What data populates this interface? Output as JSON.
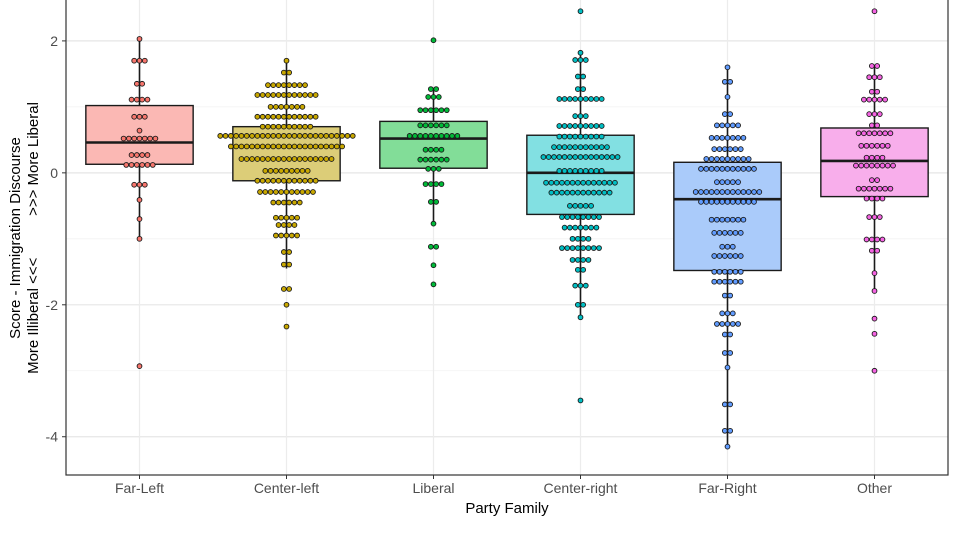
{
  "chart_data": {
    "type": "boxplot with dotplot overlay",
    "xlabel": "Party Family",
    "ylabel_lines": [
      "Score - Immigration Discourse",
      "More Illiberal <<<          >>> More Liberal"
    ],
    "ylim": [
      -4.58,
      2.62
    ],
    "yticks": [
      2,
      0,
      -2,
      -4
    ],
    "grid": true,
    "categories": [
      "Far-Left",
      "Center-left",
      "Liberal",
      "Center-right",
      "Far-Right",
      "Other"
    ],
    "colors": {
      "Far-Left": {
        "fill": "#fbb8b4",
        "dot": "#f8766d"
      },
      "Center-left": {
        "fill": "#dccd78",
        "dot": "#c9a800"
      },
      "Liberal": {
        "fill": "#82dd98",
        "dot": "#00ba38"
      },
      "Center-right": {
        "fill": "#82e0e2",
        "dot": "#00bfc4"
      },
      "Far-Right": {
        "fill": "#aacbfa",
        "dot": "#619cff"
      },
      "Other": {
        "fill": "#f8aeeb",
        "dot": "#f564e3"
      }
    },
    "boxes": [
      {
        "category": "Far-Left",
        "whisker_low": -1.0,
        "q1": 0.13,
        "median": 0.46,
        "q3": 1.02,
        "whisker_high": 2.03
      },
      {
        "category": "Center-left",
        "whisker_low": -1.45,
        "q1": -0.12,
        "median": 0.4,
        "q3": 0.7,
        "whisker_high": 1.7
      },
      {
        "category": "Liberal",
        "whisker_low": -0.77,
        "q1": 0.07,
        "median": 0.52,
        "q3": 0.78,
        "whisker_high": 1.27
      },
      {
        "category": "Center-right",
        "whisker_low": -2.19,
        "q1": -0.63,
        "median": 0.0,
        "q3": 0.57,
        "whisker_high": 1.82
      },
      {
        "category": "Far-Right",
        "whisker_low": -4.15,
        "q1": -1.48,
        "median": -0.4,
        "q3": 0.16,
        "whisker_high": 1.6
      },
      {
        "category": "Other",
        "whisker_low": -1.79,
        "q1": -0.36,
        "median": 0.18,
        "q3": 0.68,
        "whisker_high": 1.62
      }
    ],
    "dot_bins": {
      "Far-Left": [
        [
          2.03,
          1
        ],
        [
          1.7,
          3
        ],
        [
          1.35,
          2
        ],
        [
          1.11,
          4
        ],
        [
          0.85,
          3
        ],
        [
          0.64,
          1
        ],
        [
          0.52,
          7
        ],
        [
          0.27,
          4
        ],
        [
          0.12,
          6
        ],
        [
          -0.18,
          3
        ],
        [
          -0.41,
          1
        ],
        [
          -0.7,
          1
        ],
        [
          -1.0,
          1
        ],
        [
          -2.93,
          1
        ]
      ],
      "Center-left": [
        [
          1.7,
          1
        ],
        [
          1.52,
          2
        ],
        [
          1.33,
          8
        ],
        [
          1.18,
          12
        ],
        [
          1.0,
          7
        ],
        [
          0.85,
          12
        ],
        [
          0.7,
          10
        ],
        [
          0.56,
          26
        ],
        [
          0.4,
          22
        ],
        [
          0.21,
          18
        ],
        [
          0.03,
          9
        ],
        [
          -0.12,
          12
        ],
        [
          -0.29,
          11
        ],
        [
          -0.45,
          6
        ],
        [
          -0.68,
          5
        ],
        [
          -0.79,
          4
        ],
        [
          -0.95,
          5
        ],
        [
          -1.2,
          2
        ],
        [
          -1.39,
          2
        ],
        [
          -1.76,
          2
        ],
        [
          -2.0,
          1
        ],
        [
          -2.33,
          1
        ]
      ],
      "Liberal": [
        [
          2.01,
          1
        ],
        [
          1.27,
          2
        ],
        [
          1.15,
          3
        ],
        [
          0.95,
          6
        ],
        [
          0.72,
          6
        ],
        [
          0.56,
          10
        ],
        [
          0.35,
          4
        ],
        [
          0.2,
          6
        ],
        [
          0.06,
          3
        ],
        [
          -0.17,
          4
        ],
        [
          -0.44,
          2
        ],
        [
          -0.77,
          1
        ],
        [
          -1.12,
          2
        ],
        [
          -1.4,
          1
        ],
        [
          -1.69,
          1
        ]
      ],
      "Center-right": [
        [
          2.45,
          1
        ],
        [
          1.82,
          1
        ],
        [
          1.71,
          3
        ],
        [
          1.46,
          2
        ],
        [
          1.27,
          2
        ],
        [
          1.12,
          9
        ],
        [
          0.86,
          3
        ],
        [
          0.71,
          9
        ],
        [
          0.55,
          9
        ],
        [
          0.39,
          11
        ],
        [
          0.24,
          15
        ],
        [
          0.03,
          9
        ],
        [
          -0.15,
          14
        ],
        [
          -0.3,
          12
        ],
        [
          -0.5,
          5
        ],
        [
          -0.67,
          8
        ],
        [
          -0.83,
          7
        ],
        [
          -1.0,
          4
        ],
        [
          -1.14,
          8
        ],
        [
          -1.32,
          4
        ],
        [
          -1.47,
          2
        ],
        [
          -1.71,
          3
        ],
        [
          -2.0,
          2
        ],
        [
          -2.19,
          1
        ],
        [
          -3.45,
          1
        ]
      ],
      "Far-Right": [
        [
          1.6,
          1
        ],
        [
          1.38,
          2
        ],
        [
          1.15,
          1
        ],
        [
          0.89,
          2
        ],
        [
          0.72,
          5
        ],
        [
          0.53,
          7
        ],
        [
          0.36,
          6
        ],
        [
          0.21,
          9
        ],
        [
          0.06,
          11
        ],
        [
          -0.14,
          5
        ],
        [
          -0.29,
          13
        ],
        [
          -0.44,
          11
        ],
        [
          -0.71,
          7
        ],
        [
          -0.91,
          6
        ],
        [
          -1.12,
          3
        ],
        [
          -1.26,
          6
        ],
        [
          -1.5,
          6
        ],
        [
          -1.65,
          6
        ],
        [
          -1.86,
          2
        ],
        [
          -2.13,
          3
        ],
        [
          -2.29,
          5
        ],
        [
          -2.45,
          2
        ],
        [
          -2.73,
          2
        ],
        [
          -2.95,
          1
        ],
        [
          -3.51,
          2
        ],
        [
          -3.91,
          2
        ],
        [
          -4.15,
          1
        ]
      ],
      "Other": [
        [
          2.45,
          1
        ],
        [
          1.62,
          2
        ],
        [
          1.45,
          3
        ],
        [
          1.23,
          2
        ],
        [
          1.11,
          5
        ],
        [
          0.89,
          3
        ],
        [
          0.72,
          2
        ],
        [
          0.6,
          7
        ],
        [
          0.41,
          6
        ],
        [
          0.23,
          4
        ],
        [
          0.11,
          8
        ],
        [
          -0.11,
          2
        ],
        [
          -0.24,
          7
        ],
        [
          -0.39,
          4
        ],
        [
          -0.67,
          3
        ],
        [
          -1.01,
          4
        ],
        [
          -1.18,
          2
        ],
        [
          -1.52,
          1
        ],
        [
          -1.79,
          1
        ],
        [
          -2.21,
          1
        ],
        [
          -2.44,
          1
        ],
        [
          -3.0,
          1
        ]
      ]
    }
  }
}
